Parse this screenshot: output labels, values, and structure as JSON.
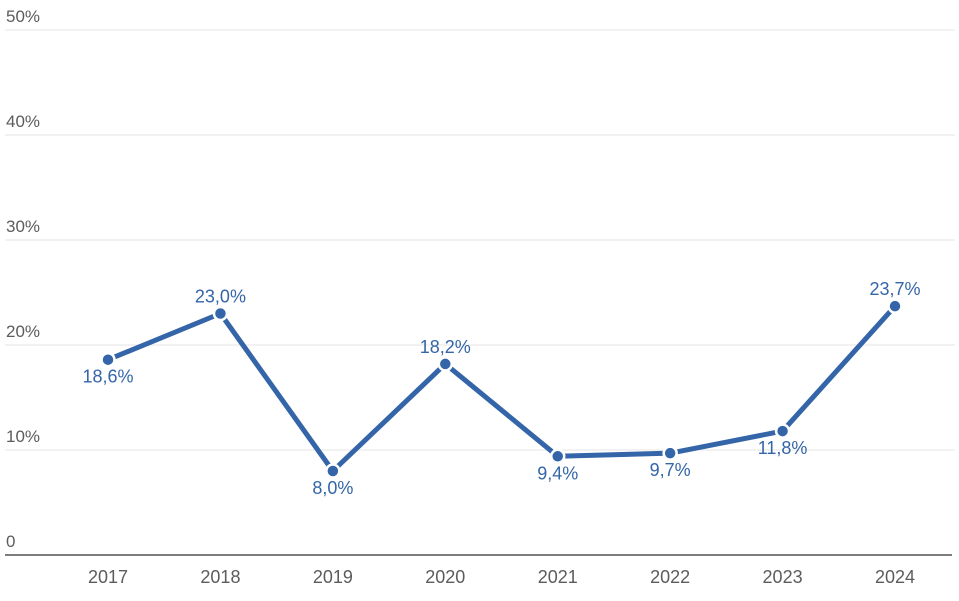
{
  "chart_data": {
    "type": "line",
    "title": "",
    "xlabel": "",
    "ylabel": "",
    "categories": [
      "2017",
      "2018",
      "2019",
      "2020",
      "2021",
      "2022",
      "2023",
      "2024"
    ],
    "values": [
      18.6,
      23.0,
      8.0,
      18.2,
      9.4,
      9.7,
      11.8,
      23.7
    ],
    "value_labels": [
      "18,6%",
      "23,0%",
      "8,0%",
      "18,2%",
      "9,4%",
      "9,7%",
      "11,8%",
      "23,7%"
    ],
    "label_positions": [
      "below",
      "above",
      "below",
      "above",
      "below",
      "below",
      "below",
      "above"
    ],
    "decimal_separator": ",",
    "ylim": [
      0,
      50
    ],
    "y_ticks": [
      {
        "value": 0,
        "label": "0"
      },
      {
        "value": 10,
        "label": "10%"
      },
      {
        "value": 20,
        "label": "20%"
      },
      {
        "value": 30,
        "label": "30%"
      },
      {
        "value": 40,
        "label": "40%"
      },
      {
        "value": 50,
        "label": "50%"
      }
    ],
    "grid": true,
    "legend": "none",
    "colors": {
      "series": "#3465a8",
      "data_label": "#3465a8",
      "marker_ring": "#ffffff",
      "gridline": "#e6e6e6",
      "axis_line": "#7d7d7d",
      "tick_text": "#5c5c5c",
      "background": "#ffffff"
    }
  }
}
